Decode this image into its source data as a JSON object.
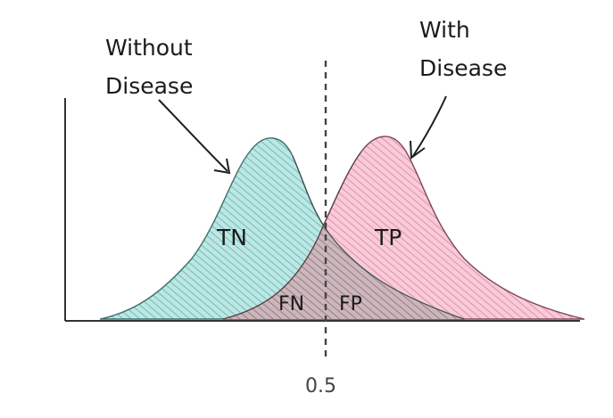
{
  "labels": {
    "without_line1": "Without",
    "without_line2": "Disease",
    "with_line1": "With",
    "with_line2": "Disease",
    "tn": "TN",
    "tp": "TP",
    "fn": "FN",
    "fp": "FP",
    "threshold": "0.5"
  },
  "colors": {
    "without_fill": "#a8dcd9",
    "with_fill": "#f3b8c8",
    "overlap_fill": "#b49aa2",
    "stroke": "#3a3a3a"
  }
}
